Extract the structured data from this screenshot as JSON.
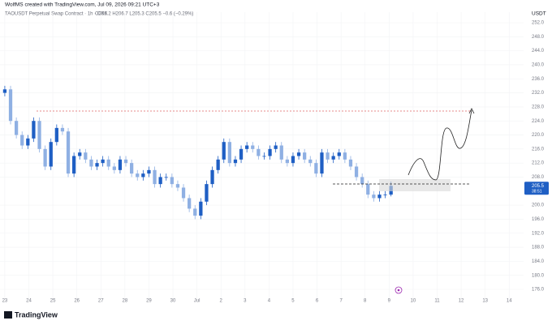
{
  "header": {
    "credit": "WolfMS created with TradingView.com, Jul 09, 2026 09:21 UTC+3",
    "logo": "TradingView"
  },
  "chart_data": {
    "type": "candlestick",
    "symbol": "TAOUSDT Perpetual Swap Contract · 1h · OKX",
    "ohlc_legend": "O206.2 H206.7 L205.3 C205.5 −0.6 (−0.29%)",
    "currency": "USDT",
    "last_price": 205.5,
    "countdown": "38:51",
    "up_color": "#1f5fc4",
    "down_color": "#8fb0e3",
    "x": [
      0,
      0.24,
      0.48,
      0.72,
      0.96,
      1.2,
      1.44,
      1.68,
      1.92,
      2.16,
      2.4,
      2.64,
      2.88,
      3.12,
      3.36,
      3.6,
      3.84,
      4.08,
      4.32,
      4.56,
      4.8,
      5.04,
      5.28,
      5.52,
      5.76,
      6,
      6.24,
      6.48,
      6.72,
      6.96,
      7.2,
      7.44,
      7.68,
      7.92,
      8.16,
      8.4,
      8.64,
      8.88,
      9.12,
      9.36,
      9.6,
      9.84,
      10.08,
      10.32,
      10.56,
      10.8,
      11.04,
      11.28,
      11.52,
      11.76,
      12,
      12.24,
      12.48,
      12.72,
      12.96,
      13.2,
      13.44,
      13.68,
      13.92,
      14.16,
      14.4,
      14.64,
      14.88,
      15.12,
      15.36,
      15.6,
      15.84,
      16.08
    ],
    "open": [
      232,
      233,
      224,
      220,
      217,
      219,
      224,
      216,
      211,
      218,
      222,
      221,
      209,
      214,
      215,
      213,
      211,
      212,
      213,
      211,
      210,
      213,
      212,
      209,
      208,
      209,
      210,
      206,
      208,
      208,
      206,
      205,
      202,
      199,
      197,
      201,
      206,
      210,
      213,
      218,
      212,
      213,
      216,
      217,
      216,
      214,
      214,
      216,
      217,
      213,
      212,
      214,
      215,
      213,
      212,
      209,
      215,
      213,
      214,
      215,
      213,
      211,
      208,
      206,
      203,
      202,
      203,
      203
    ],
    "high": [
      234,
      234,
      225,
      221,
      220,
      225,
      225,
      217,
      219,
      223,
      223,
      222,
      215,
      216,
      216,
      214,
      213,
      214,
      214,
      212,
      214,
      214,
      213,
      210,
      210,
      211,
      211,
      209,
      209,
      209,
      207,
      206,
      203,
      200,
      202,
      207,
      211,
      214,
      219,
      219,
      214,
      217,
      218,
      218,
      217,
      215,
      217,
      218,
      218,
      214,
      215,
      216,
      216,
      214,
      213,
      216,
      216,
      215,
      216,
      216,
      214,
      212,
      209,
      207,
      204,
      204,
      204,
      206.7
    ],
    "low": [
      231,
      223,
      219,
      216,
      216,
      218,
      215,
      210,
      210,
      217,
      220,
      208,
      208,
      213,
      212,
      210,
      210,
      211,
      210,
      209,
      209,
      211,
      208,
      207,
      207,
      208,
      205,
      205,
      207,
      205,
      204,
      201,
      198,
      196,
      196,
      200,
      205,
      209,
      212,
      211,
      211,
      212,
      215,
      215,
      213,
      213,
      213,
      215,
      212,
      211,
      211,
      213,
      212,
      211,
      208,
      208,
      212,
      212,
      213,
      212,
      210,
      207,
      205,
      202,
      201,
      201,
      202,
      202.5
    ],
    "close": [
      233,
      224,
      220,
      217,
      219,
      224,
      216,
      211,
      218,
      222,
      221,
      209,
      214,
      215,
      213,
      211,
      212,
      213,
      211,
      210,
      213,
      212,
      209,
      208,
      209,
      210,
      206,
      208,
      208,
      206,
      205,
      202,
      199,
      197,
      201,
      206,
      210,
      213,
      218,
      212,
      213,
      216,
      217,
      216,
      214,
      214,
      216,
      217,
      213,
      212,
      214,
      215,
      213,
      212,
      209,
      215,
      213,
      214,
      215,
      213,
      211,
      208,
      206,
      203,
      202,
      203,
      203,
      205.5
    ],
    "xlim": [
      -0.2,
      21.6
    ],
    "xticks": [
      {
        "value": 0,
        "label": "23"
      },
      {
        "value": 1,
        "label": "24"
      },
      {
        "value": 2,
        "label": "25"
      },
      {
        "value": 3,
        "label": "26"
      },
      {
        "value": 4,
        "label": "27"
      },
      {
        "value": 5,
        "label": "28"
      },
      {
        "value": 6,
        "label": "29"
      },
      {
        "value": 7,
        "label": "30"
      },
      {
        "value": 8,
        "label": "Jul"
      },
      {
        "value": 9,
        "label": "2"
      },
      {
        "value": 10,
        "label": "3"
      },
      {
        "value": 11,
        "label": "4"
      },
      {
        "value": 12,
        "label": "5"
      },
      {
        "value": 13,
        "label": "6"
      },
      {
        "value": 14,
        "label": "7"
      },
      {
        "value": 15,
        "label": "8"
      },
      {
        "value": 16,
        "label": "9"
      },
      {
        "value": 17,
        "label": "10"
      },
      {
        "value": 18,
        "label": "11"
      },
      {
        "value": 19,
        "label": "12"
      },
      {
        "value": 20,
        "label": "13"
      },
      {
        "value": 21,
        "label": "14"
      }
    ],
    "ylim": [
      173,
      255
    ],
    "yticks": [
      {
        "value": 176,
        "label": "176.0"
      },
      {
        "value": 180,
        "label": "180.0"
      },
      {
        "value": 184,
        "label": "184.0"
      },
      {
        "value": 188,
        "label": "188.0"
      },
      {
        "value": 192,
        "label": "192.0"
      },
      {
        "value": 196,
        "label": "196.0"
      },
      {
        "value": 200,
        "label": "200.0"
      },
      {
        "value": 208,
        "label": "208.0"
      },
      {
        "value": 212,
        "label": "212.0"
      },
      {
        "value": 216,
        "label": "216.0"
      },
      {
        "value": 220,
        "label": "220.0"
      },
      {
        "value": 224,
        "label": "224.0"
      },
      {
        "value": 228,
        "label": "228.0"
      },
      {
        "value": 232,
        "label": "232.0"
      },
      {
        "value": 236,
        "label": "236.0"
      },
      {
        "value": 240,
        "label": "240.0"
      },
      {
        "value": 244,
        "label": "244.0"
      },
      {
        "value": 248,
        "label": "248.0"
      },
      {
        "value": 252,
        "label": "252.0"
      }
    ],
    "grid": true
  }
}
